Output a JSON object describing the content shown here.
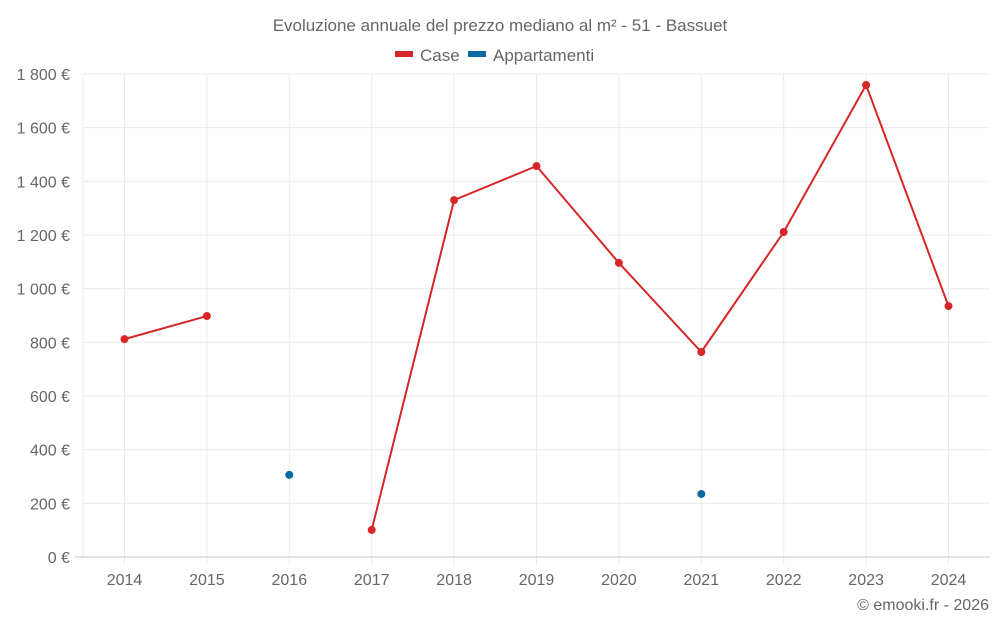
{
  "chart_data": {
    "type": "line",
    "title": "Evoluzione annuale del prezzo mediano al m² - 51 - Bassuet",
    "xlabel": "",
    "ylabel": "",
    "categories": [
      "2014",
      "2015",
      "2016",
      "2017",
      "2018",
      "2019",
      "2020",
      "2021",
      "2022",
      "2023",
      "2024"
    ],
    "series": [
      {
        "name": "Case",
        "color": "#d62728",
        "values": [
          812,
          898,
          null,
          101,
          1330,
          1457,
          1096,
          764,
          1211,
          1759,
          935
        ]
      },
      {
        "name": "Appartamenti",
        "color": "#0b6aa2",
        "values": [
          null,
          null,
          306,
          null,
          null,
          null,
          null,
          235,
          null,
          null,
          null
        ]
      }
    ],
    "ylim": [
      0,
      1800
    ],
    "yticks": [
      0,
      200,
      400,
      600,
      800,
      1000,
      1200,
      1400,
      1600,
      1800
    ],
    "ytick_labels": [
      "0 €",
      "200 €",
      "400 €",
      "600 €",
      "800 €",
      "1 000 €",
      "1 200 €",
      "1 400 €",
      "1 600 €",
      "1 800 €"
    ],
    "grid": true,
    "legend_position": "top"
  },
  "legend": [
    {
      "label": "Case",
      "color": "#d62728"
    },
    {
      "label": "Appartamenti",
      "color": "#0b6aa2"
    }
  ],
  "credit": "© emooki.fr - 2026"
}
